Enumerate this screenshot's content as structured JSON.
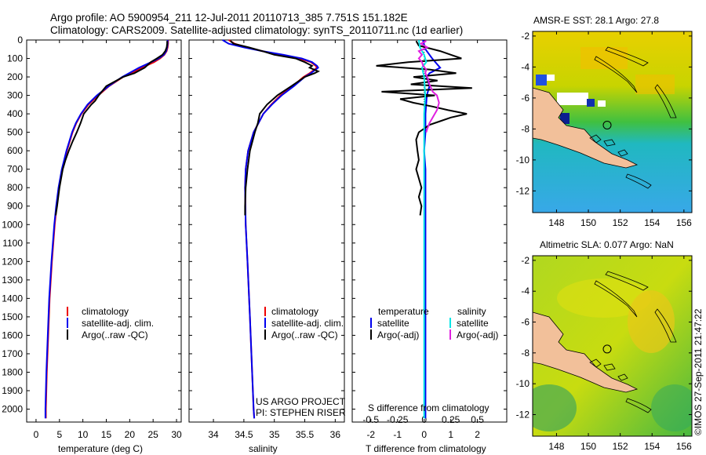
{
  "title_line1": "Argo profile: AO 5900954_211 12-Jul-2011 20110713_385 7.751S 151.182E",
  "title_line2": "Climatology: CARS2009. Satellite-adjusted climatology: synTS_20110711.nc (1d earlier)",
  "credit": "©IMOS 27-Sep-2011 21:47:22",
  "project_line1": "US ARGO PROJECT",
  "project_line2": "PI: STEPHEN RISER",
  "colors": {
    "climatology": "#ee0000",
    "satellite": "#0000ee",
    "argo": "#000000",
    "satellite_s": "#00e5e5",
    "argo_s": "#e020e0",
    "land": "#f2c09a"
  },
  "depth_ticks": [
    "0",
    "100",
    "200",
    "300",
    "400",
    "500",
    "600",
    "700",
    "800",
    "900",
    "1000",
    "1100",
    "1200",
    "1300",
    "1400",
    "1500",
    "1600",
    "1700",
    "1800",
    "1900",
    "2000"
  ],
  "chart_data": [
    {
      "type": "line",
      "xlabel": "temperature (deg C)",
      "ylabel": "depth",
      "xlim": [
        -2,
        31
      ],
      "ylim": [
        2070,
        0
      ],
      "xticks": [
        "0",
        "5",
        "10",
        "15",
        "20",
        "25",
        "30"
      ],
      "legend": [
        "climatology",
        "satellite-adj. clim.",
        "Argo(..raw -QC)"
      ],
      "series": [
        {
          "name": "climatology",
          "depth": [
            0,
            20,
            40,
            60,
            80,
            100,
            120,
            150,
            200,
            250,
            300,
            350,
            400,
            450,
            500,
            550,
            600,
            650,
            700,
            800,
            900,
            1000,
            1200,
            1400,
            1600,
            1800,
            2000,
            2050
          ],
          "values": [
            28.2,
            28.2,
            28.1,
            27.9,
            27.4,
            26.5,
            25.2,
            22.6,
            18.6,
            15.6,
            13.3,
            11.2,
            9.7,
            8.6,
            7.8,
            7.2,
            6.6,
            6.1,
            5.6,
            4.9,
            4.4,
            4.0,
            3.4,
            2.9,
            2.6,
            2.3,
            2.1,
            2.1
          ]
        },
        {
          "name": "satellite-adj. clim.",
          "depth": [
            0,
            20,
            40,
            60,
            80,
            100,
            120,
            150,
            200,
            250,
            300,
            350,
            400,
            450,
            500,
            550,
            600,
            650,
            700,
            800,
            900,
            1000,
            1200,
            1400,
            1600,
            1800,
            2000,
            2050
          ],
          "values": [
            28.1,
            28.1,
            28.0,
            27.8,
            27.3,
            26.2,
            24.6,
            22.0,
            18.4,
            15.5,
            13.0,
            11.0,
            9.6,
            8.5,
            7.7,
            7.1,
            6.5,
            6.0,
            5.5,
            4.8,
            4.3,
            3.9,
            3.3,
            2.8,
            2.5,
            2.2,
            2.0,
            2.0
          ]
        },
        {
          "name": "Argo(..raw -QC)",
          "depth": [
            5,
            20,
            40,
            60,
            80,
            100,
            120,
            150,
            180,
            200,
            250,
            300,
            330,
            350,
            400,
            450,
            500,
            550,
            600,
            650,
            700,
            800,
            900,
            950
          ],
          "values": [
            28.0,
            28.0,
            27.9,
            27.6,
            27.0,
            25.8,
            24.5,
            23.2,
            21.0,
            18.6,
            15.0,
            13.4,
            12.6,
            11.8,
            10.2,
            9.5,
            8.7,
            7.8,
            7.0,
            6.3,
            5.7,
            5.0,
            4.5,
            4.2
          ]
        }
      ]
    },
    {
      "type": "line",
      "xlabel": "salinity",
      "xlim": [
        33.6,
        36.15
      ],
      "ylim": [
        2070,
        0
      ],
      "xticks": [
        "34",
        "34.5",
        "35",
        "35.5",
        "36"
      ],
      "legend": [
        "climatology",
        "satellite-adj. clim.",
        "Argo(..raw -QC)"
      ],
      "series": [
        {
          "name": "climatology",
          "depth": [
            0,
            20,
            40,
            60,
            80,
            100,
            120,
            140,
            150,
            160,
            180,
            200,
            250,
            300,
            350,
            400,
            500,
            600,
            700,
            800,
            1000,
            1200,
            1500,
            2000,
            2050
          ],
          "values": [
            34.25,
            34.35,
            34.55,
            34.8,
            35.1,
            35.4,
            35.6,
            35.68,
            35.7,
            35.66,
            35.58,
            35.48,
            35.3,
            35.1,
            34.95,
            34.82,
            34.66,
            34.57,
            34.53,
            34.52,
            34.53,
            34.56,
            34.6,
            34.66,
            34.67
          ]
        },
        {
          "name": "satellite-adj. clim.",
          "depth": [
            0,
            20,
            40,
            60,
            80,
            100,
            120,
            140,
            150,
            160,
            180,
            200,
            250,
            300,
            350,
            400,
            500,
            600,
            700,
            800,
            1000,
            1200,
            1500,
            2000,
            2050
          ],
          "values": [
            34.15,
            34.25,
            34.5,
            34.8,
            35.15,
            35.45,
            35.62,
            35.7,
            35.72,
            35.68,
            35.6,
            35.5,
            35.32,
            35.12,
            34.96,
            34.82,
            34.66,
            34.57,
            34.53,
            34.52,
            34.53,
            34.56,
            34.6,
            34.66,
            34.67
          ]
        },
        {
          "name": "Argo(..raw -QC)",
          "depth": [
            5,
            20,
            40,
            60,
            80,
            100,
            120,
            140,
            150,
            170,
            180,
            200,
            250,
            300,
            350,
            400,
            450,
            500,
            600,
            700,
            800,
            900,
            950
          ],
          "values": [
            34.28,
            34.33,
            34.58,
            34.8,
            35.0,
            35.35,
            35.5,
            35.62,
            35.58,
            35.72,
            35.66,
            35.5,
            35.28,
            35.05,
            34.88,
            34.76,
            34.73,
            34.68,
            34.6,
            34.56,
            34.53,
            34.52,
            34.52
          ]
        }
      ]
    },
    {
      "type": "line",
      "xlabel": "T difference from climatology",
      "xlabel_top": "S difference from climatology",
      "xlim": [
        -2.7,
        3.1
      ],
      "ylim": [
        2070,
        0
      ],
      "xticks": [
        "-2",
        "-1",
        "0",
        "1",
        "2"
      ],
      "xticks_top": [
        "-0.5",
        "-0.25",
        "0",
        "0.25",
        "0.5"
      ],
      "xlim_top": [
        -0.675,
        0.775
      ],
      "legend_groups": [
        "temperature",
        "salinity"
      ],
      "legend": [
        "satellite",
        "Argo(-adj)",
        "satellite",
        "Argo(-adj)"
      ],
      "series": [
        {
          "name": "temperature satellite",
          "depth": [
            0,
            50,
            100,
            150,
            180,
            200,
            250,
            300,
            400,
            500,
            600,
            700,
            800,
            900,
            1000,
            1500,
            2000,
            2050
          ],
          "values": [
            -0.05,
            0.05,
            0.3,
            0.6,
            0.2,
            0.1,
            0.2,
            0.1,
            0.05,
            0.05,
            0.0,
            0.05,
            0.05,
            0.05,
            0.05,
            0.05,
            0.05,
            0.05
          ]
        },
        {
          "name": "temperature Argo(-adj)",
          "depth": [
            5,
            30,
            60,
            80,
            100,
            120,
            140,
            160,
            180,
            200,
            220,
            240,
            260,
            280,
            300,
            320,
            340,
            360,
            380,
            400,
            420,
            440,
            460,
            480,
            500,
            540,
            600,
            650,
            700,
            750,
            800,
            850,
            900,
            950
          ],
          "values": [
            -0.3,
            -0.2,
            0.6,
            1.0,
            1.4,
            -0.6,
            -1.8,
            0.2,
            1.2,
            -0.4,
            0.5,
            -0.5,
            1.8,
            -1.6,
            0.4,
            -0.9,
            -0.4,
            0.3,
            0.9,
            1.6,
            1.0,
            0.6,
            0.2,
            0.0,
            -0.2,
            -0.3,
            -0.25,
            -0.2,
            -0.3,
            -0.2,
            -0.1,
            -0.2,
            -0.1,
            -0.15
          ]
        },
        {
          "name": "salinity satellite",
          "depth": [
            0,
            40,
            80,
            120,
            150,
            200,
            300,
            400,
            500,
            600,
            800,
            1000,
            1500,
            2000,
            2050
          ],
          "values": [
            -0.05,
            -0.04,
            0.0,
            0.02,
            -0.02,
            0.0,
            0.01,
            0.0,
            0.0,
            0.0,
            0.0,
            0.0,
            0.0,
            0.0,
            0.0
          ]
        },
        {
          "name": "salinity Argo(-adj)",
          "depth": [
            5,
            20,
            40,
            60,
            80,
            100,
            120,
            140,
            160,
            180,
            200,
            240,
            280,
            300,
            340,
            380,
            420,
            450,
            480,
            500
          ],
          "values": [
            0.02,
            -0.03,
            0.03,
            -0.05,
            -0.02,
            -0.05,
            -0.02,
            -0.01,
            0.02,
            0.01,
            0.03,
            0.05,
            0.08,
            0.12,
            0.14,
            0.12,
            0.08,
            0.05,
            0.03,
            0.02
          ]
        }
      ]
    }
  ],
  "maps": [
    {
      "title": "AMSR-E SST: 28.1 Argo: 27.8",
      "xticks": [
        "148",
        "150",
        "152",
        "154",
        "156"
      ],
      "yticks": [
        "-2",
        "-4",
        "-6",
        "-8",
        "-10",
        "-12"
      ],
      "lon_range": [
        146.5,
        156.5
      ],
      "lat_range": [
        -13.4,
        -1.7
      ],
      "marker": {
        "lon": 151.18,
        "lat": -7.75
      }
    },
    {
      "title": "Altimetric SLA: 0.077 Argo: NaN",
      "xticks": [
        "148",
        "150",
        "152",
        "154",
        "156"
      ],
      "yticks": [
        "-2",
        "-4",
        "-6",
        "-8",
        "-10",
        "-12"
      ],
      "lon_range": [
        146.5,
        156.5
      ],
      "lat_range": [
        -13.4,
        -1.7
      ],
      "marker": {
        "lon": 151.18,
        "lat": -7.75
      }
    }
  ]
}
